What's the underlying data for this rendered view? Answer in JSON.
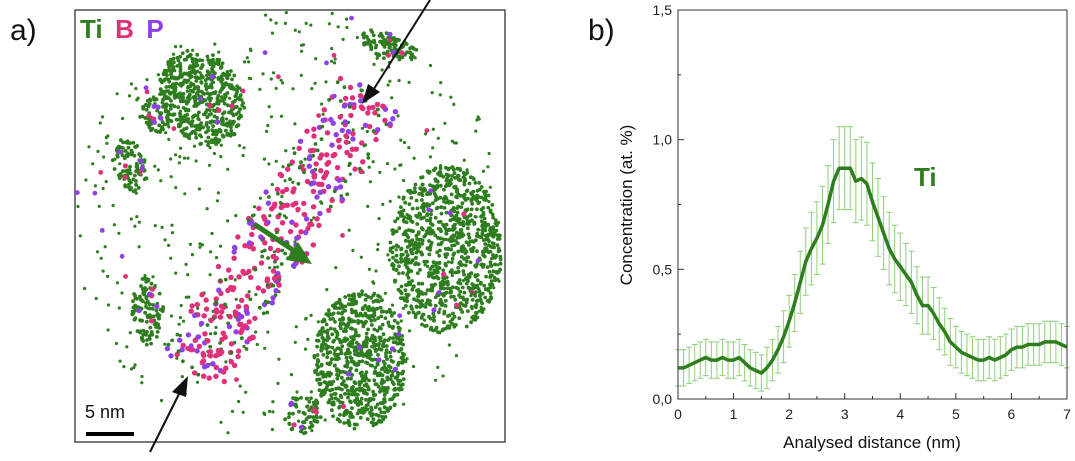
{
  "panel_a": {
    "label": "a)",
    "legend": [
      {
        "symbol": "Ti",
        "color": "#2e7d1e"
      },
      {
        "symbol": "B",
        "color": "#e0307a"
      },
      {
        "symbol": "P",
        "color": "#9040e8"
      }
    ],
    "scale_bar_label": "5 nm"
  },
  "panel_b": {
    "label": "b)"
  },
  "chart_data": {
    "type": "line",
    "xlabel": "Analysed distance (nm)",
    "ylabel": "Concentration (at. %)",
    "xlim": [
      0,
      7
    ],
    "ylim": [
      0,
      1.5
    ],
    "x_ticks": [
      "0",
      "1",
      "2",
      "3",
      "4",
      "5",
      "6",
      "7"
    ],
    "y_ticks": [
      "0,0",
      "0,5",
      "1,0",
      "1,5"
    ],
    "annotation": "Ti",
    "series": [
      {
        "name": "Ti",
        "color": "#2e7d1e",
        "error_color": "#8fcf7a",
        "x": [
          0,
          0.1,
          0.2,
          0.3,
          0.4,
          0.5,
          0.6,
          0.7,
          0.8,
          0.9,
          1.0,
          1.1,
          1.2,
          1.3,
          1.4,
          1.5,
          1.6,
          1.7,
          1.8,
          1.9,
          2.0,
          2.1,
          2.2,
          2.3,
          2.4,
          2.5,
          2.6,
          2.7,
          2.8,
          2.9,
          3.0,
          3.1,
          3.2,
          3.3,
          3.4,
          3.5,
          3.6,
          3.7,
          3.8,
          3.9,
          4.0,
          4.1,
          4.2,
          4.3,
          4.4,
          4.5,
          4.6,
          4.7,
          4.8,
          4.9,
          5.0,
          5.1,
          5.2,
          5.3,
          5.4,
          5.5,
          5.6,
          5.7,
          5.8,
          5.9,
          6.0,
          6.1,
          6.2,
          6.3,
          6.4,
          6.5,
          6.6,
          6.7,
          6.8,
          6.9,
          7.0
        ],
        "y": [
          0.12,
          0.12,
          0.13,
          0.14,
          0.15,
          0.16,
          0.15,
          0.15,
          0.16,
          0.15,
          0.15,
          0.16,
          0.14,
          0.12,
          0.11,
          0.1,
          0.12,
          0.15,
          0.19,
          0.24,
          0.3,
          0.37,
          0.45,
          0.53,
          0.58,
          0.62,
          0.67,
          0.75,
          0.84,
          0.89,
          0.89,
          0.89,
          0.84,
          0.85,
          0.83,
          0.76,
          0.7,
          0.64,
          0.58,
          0.54,
          0.51,
          0.48,
          0.45,
          0.4,
          0.36,
          0.36,
          0.33,
          0.29,
          0.26,
          0.22,
          0.2,
          0.18,
          0.17,
          0.16,
          0.15,
          0.15,
          0.16,
          0.15,
          0.16,
          0.17,
          0.19,
          0.2,
          0.2,
          0.21,
          0.21,
          0.21,
          0.22,
          0.22,
          0.22,
          0.21,
          0.2
        ],
        "error": [
          0.07,
          0.07,
          0.07,
          0.07,
          0.07,
          0.07,
          0.07,
          0.07,
          0.07,
          0.07,
          0.07,
          0.07,
          0.07,
          0.07,
          0.07,
          0.07,
          0.08,
          0.08,
          0.09,
          0.1,
          0.1,
          0.11,
          0.12,
          0.13,
          0.14,
          0.14,
          0.15,
          0.15,
          0.16,
          0.16,
          0.16,
          0.16,
          0.16,
          0.16,
          0.16,
          0.15,
          0.15,
          0.14,
          0.14,
          0.13,
          0.13,
          0.12,
          0.12,
          0.11,
          0.11,
          0.11,
          0.1,
          0.1,
          0.09,
          0.09,
          0.08,
          0.08,
          0.08,
          0.08,
          0.08,
          0.08,
          0.08,
          0.08,
          0.08,
          0.08,
          0.08,
          0.08,
          0.08,
          0.08,
          0.08,
          0.08,
          0.08,
          0.08,
          0.08,
          0.08,
          0.08
        ]
      }
    ]
  }
}
